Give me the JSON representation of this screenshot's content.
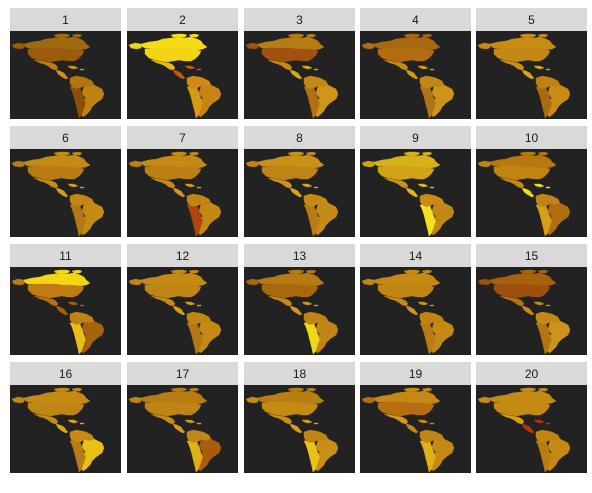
{
  "figure": {
    "panels": [
      {
        "label": "1",
        "palette": {
          "canada": "#a06a10",
          "usa": "#9a5c0c",
          "mexico": "#c07a14",
          "central": "#d49418",
          "south": "#b27510",
          "brazil": "#c08212",
          "andes": "#8e5008"
        }
      },
      {
        "label": "2",
        "palette": {
          "canada": "#f4dc16",
          "usa": "#f2d414",
          "mexico": "#e8b816",
          "central": "#c05a0e",
          "south": "#d08a14",
          "brazil": "#c88412",
          "andes": "#d89a16"
        }
      },
      {
        "label": "3",
        "palette": {
          "canada": "#b87c14",
          "usa": "#a0520e",
          "mexico": "#c88a14",
          "central": "#d8a418",
          "south": "#c28814",
          "brazil": "#d09618",
          "andes": "#b47010"
        }
      },
      {
        "label": "4",
        "palette": {
          "canada": "#a8680e",
          "usa": "#b06e10",
          "mexico": "#c48a14",
          "central": "#d09c18",
          "south": "#c28614",
          "brazil": "#cc9418",
          "andes": "#b27412"
        }
      },
      {
        "label": "5",
        "palette": {
          "canada": "#c88c14",
          "usa": "#c48814",
          "mexico": "#cc9218",
          "central": "#d8a418",
          "south": "#c08012",
          "brazil": "#c88c16",
          "andes": "#aa6a10"
        }
      },
      {
        "label": "6",
        "palette": {
          "canada": "#c48a14",
          "usa": "#b87c12",
          "mexico": "#c68c16",
          "central": "#d4a018",
          "south": "#c28614",
          "brazil": "#c48a16",
          "andes": "#b47812"
        }
      },
      {
        "label": "7",
        "palette": {
          "canada": "#c48a14",
          "usa": "#bc8012",
          "mexico": "#c88c14",
          "central": "#d09a18",
          "south": "#c08412",
          "brazil": "#c48814",
          "andes": "#b0460c"
        }
      },
      {
        "label": "8",
        "palette": {
          "canada": "#c89016",
          "usa": "#c08414",
          "mexico": "#cc9418",
          "central": "#d8a418",
          "south": "#c48a14",
          "brazil": "#c48c16",
          "andes": "#b87c12"
        }
      },
      {
        "label": "9",
        "palette": {
          "canada": "#d8b018",
          "usa": "#d0a416",
          "mexico": "#c8960e",
          "central": "#e0b41a",
          "south": "#c88c14",
          "brazil": "#c08814",
          "andes": "#f4e020"
        }
      },
      {
        "label": "10",
        "palette": {
          "canada": "#b8780e",
          "usa": "#c08412",
          "mexico": "#c48a14",
          "central": "#f0dc1a",
          "south": "#c08414",
          "brazil": "#b06e10",
          "andes": "#d89e18"
        }
      },
      {
        "label": "11",
        "palette": {
          "canada": "#f2d614",
          "usa": "#c07c12",
          "mexico": "#b86e10",
          "central": "#a85e0c",
          "south": "#c08212",
          "brazil": "#a8620e",
          "andes": "#e8be18"
        }
      },
      {
        "label": "12",
        "palette": {
          "canada": "#c48a14",
          "usa": "#c08614",
          "mexico": "#c88c16",
          "central": "#d4a018",
          "south": "#c08412",
          "brazil": "#c48a14",
          "andes": "#b47812"
        }
      },
      {
        "label": "13",
        "palette": {
          "canada": "#b67a12",
          "usa": "#a8680e",
          "mexico": "#c48a14",
          "central": "#d09a18",
          "south": "#c08412",
          "brazil": "#c08614",
          "andes": "#f0d818"
        }
      },
      {
        "label": "14",
        "palette": {
          "canada": "#c48a14",
          "usa": "#c08614",
          "mexico": "#c48a14",
          "central": "#cc9418",
          "south": "#c08412",
          "brazil": "#c48a14",
          "andes": "#b87c12"
        }
      },
      {
        "label": "15",
        "palette": {
          "canada": "#a8620e",
          "usa": "#9c500c",
          "mexico": "#b8720e",
          "central": "#c68c14",
          "south": "#c48814",
          "brazil": "#cc9418",
          "andes": "#b47410"
        }
      },
      {
        "label": "16",
        "palette": {
          "canada": "#c48a14",
          "usa": "#c08614",
          "mexico": "#c48a14",
          "central": "#d8a418",
          "south": "#c48a14",
          "brazil": "#e8c018",
          "andes": "#b87c12"
        }
      },
      {
        "label": "17",
        "palette": {
          "canada": "#b87c12",
          "usa": "#c08414",
          "mexico": "#c88c14",
          "central": "#d09c18",
          "south": "#c28614",
          "brazil": "#a85c0c",
          "andes": "#e0b018"
        }
      },
      {
        "label": "18",
        "palette": {
          "canada": "#b87e12",
          "usa": "#c48a14",
          "mexico": "#c88e16",
          "central": "#d4a018",
          "south": "#c08414",
          "brazil": "#c88e16",
          "andes": "#e8c418"
        }
      },
      {
        "label": "19",
        "palette": {
          "canada": "#c48a14",
          "usa": "#b86e10",
          "mexico": "#d09818",
          "central": "#c48a14",
          "south": "#c08414",
          "brazil": "#c48a14",
          "andes": "#e0b018"
        }
      },
      {
        "label": "20",
        "palette": {
          "canada": "#c48a14",
          "usa": "#c48a14",
          "mexico": "#d4a018",
          "central": "#b8320a",
          "south": "#c08414",
          "brazil": "#c48a14",
          "andes": "#b87c12"
        }
      }
    ]
  }
}
